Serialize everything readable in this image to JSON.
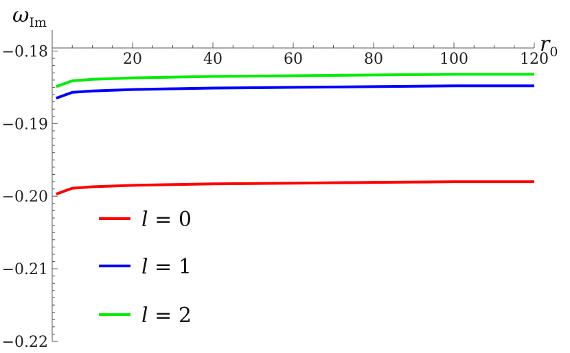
{
  "chart_data": {
    "type": "line",
    "title": "",
    "xlabel": "r",
    "xlabel_sub": "0",
    "ylabel": "ω",
    "ylabel_sub": "Im",
    "xlim": [
      0,
      120
    ],
    "ylim": [
      -0.22,
      -0.1775
    ],
    "x_ticks": [
      20,
      40,
      60,
      80,
      100,
      120
    ],
    "x_tick_labels": [
      "20",
      "40",
      "60",
      "80",
      "100",
      "120"
    ],
    "y_ticks": [
      -0.18,
      -0.19,
      -0.2,
      -0.21,
      -0.22
    ],
    "y_tick_labels": [
      "−0.18",
      "−0.19",
      "−0.20",
      "−0.21",
      "−0.22"
    ],
    "grid": false,
    "legend_position": "bottom-left",
    "series": [
      {
        "name": "l = 0",
        "label_var": "l",
        "label_rest": " = 0",
        "color": "#ff0000",
        "x": [
          1,
          5,
          10,
          20,
          30,
          40,
          60,
          80,
          100,
          120
        ],
        "y": [
          -0.1997,
          -0.1989,
          -0.1987,
          -0.1985,
          -0.1984,
          -0.1983,
          -0.1982,
          -0.1981,
          -0.198,
          -0.198
        ]
      },
      {
        "name": "l = 1",
        "label_var": "l",
        "label_rest": " = 1",
        "color": "#0000ff",
        "x": [
          1,
          5,
          10,
          20,
          30,
          40,
          60,
          80,
          100,
          120
        ],
        "y": [
          -0.1865,
          -0.1857,
          -0.1855,
          -0.1853,
          -0.1852,
          -0.1851,
          -0.185,
          -0.1849,
          -0.1848,
          -0.1848
        ]
      },
      {
        "name": "l = 2",
        "label_var": "l",
        "label_rest": " = 2",
        "color": "#00ee00",
        "x": [
          1,
          5,
          10,
          20,
          30,
          40,
          60,
          80,
          100,
          120
        ],
        "y": [
          -0.1849,
          -0.1841,
          -0.1839,
          -0.1837,
          -0.1836,
          -0.1835,
          -0.1834,
          -0.1833,
          -0.1832,
          -0.1832
        ]
      }
    ]
  }
}
